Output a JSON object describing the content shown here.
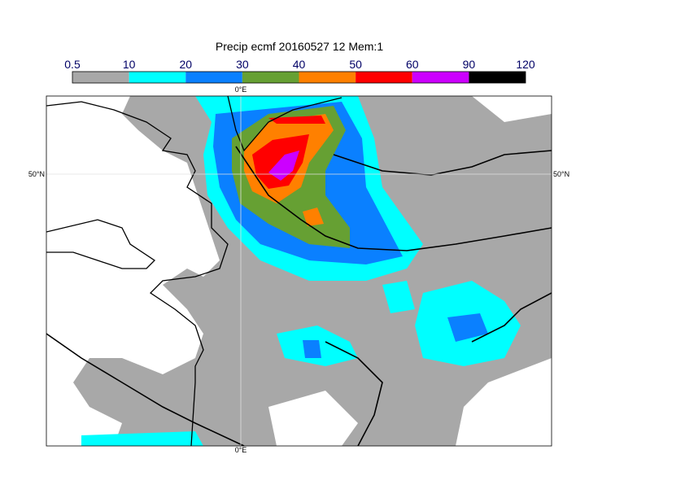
{
  "title": "Precip ecmf 20160527 12 Mem:1",
  "legend": {
    "ticks": [
      "0.5",
      "10",
      "20",
      "30",
      "40",
      "50",
      "60",
      "90",
      "120"
    ],
    "colors": [
      "#a8a8a8",
      "#00ffff",
      "#0a80ff",
      "#66a033",
      "#ff8000",
      "#ff0000",
      "#cc00ff",
      "#000000"
    ]
  },
  "map": {
    "lon_top": "0°E",
    "lon_bottom": "0°E",
    "lat_left": "50°N",
    "lat_right": "50°N"
  }
}
